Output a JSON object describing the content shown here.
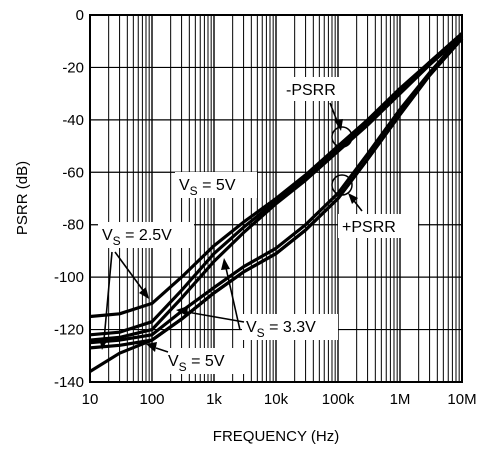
{
  "chart_data": {
    "type": "line",
    "xlabel": "FREQUENCY (Hz)",
    "ylabel": "PSRR (dB)",
    "x_scale": "log",
    "xlim": [
      10,
      10000000
    ],
    "ylim": [
      -140,
      0
    ],
    "x_ticks": [
      {
        "value": 10,
        "label": "10"
      },
      {
        "value": 100,
        "label": "100"
      },
      {
        "value": 1000,
        "label": "1k"
      },
      {
        "value": 10000,
        "label": "10k"
      },
      {
        "value": 100000,
        "label": "100k"
      },
      {
        "value": 1000000,
        "label": "1M"
      },
      {
        "value": 10000000,
        "label": "10M"
      }
    ],
    "y_ticks": [
      0,
      -20,
      -40,
      -60,
      -80,
      -100,
      -120,
      -140
    ],
    "grid": true,
    "series": [
      {
        "x": [
          10,
          30,
          100,
          300,
          1000,
          3000,
          10000,
          30000,
          100000,
          300000,
          1000000,
          3000000,
          10000000
        ],
        "y": [
          -115,
          -114,
          -110,
          -100,
          -88,
          -79,
          -70,
          -61,
          -50,
          -40,
          -28,
          -18,
          -7
        ]
      },
      {
        "x": [
          10,
          30,
          100,
          300,
          1000,
          3000,
          10000,
          30000,
          100000,
          300000,
          1000000,
          3000000,
          10000000
        ],
        "y": [
          -122,
          -121,
          -117,
          -105,
          -91,
          -81,
          -71,
          -62,
          -51,
          -41,
          -29,
          -18,
          -7
        ]
      },
      {
        "x": [
          10,
          30,
          100,
          300,
          1000,
          3000,
          10000,
          30000,
          100000,
          300000,
          1000000,
          3000000,
          10000000
        ],
        "y": [
          -124,
          -123,
          -120,
          -108,
          -94,
          -83,
          -72,
          -63,
          -52,
          -42,
          -30,
          -19,
          -8
        ]
      },
      {
        "x": [
          10,
          30,
          100,
          300,
          1000,
          3000,
          10000,
          30000,
          100000,
          300000,
          1000000,
          3000000,
          10000000
        ],
        "y": [
          -125,
          -124,
          -122,
          -113,
          -104,
          -96,
          -89,
          -80,
          -68,
          -53,
          -36,
          -22,
          -8
        ]
      },
      {
        "x": [
          10,
          30,
          100,
          300,
          1000,
          3000,
          10000,
          30000,
          100000,
          300000,
          1000000,
          3000000,
          10000000
        ],
        "y": [
          -127,
          -126,
          -124,
          -116,
          -106,
          -98,
          -91,
          -82,
          -70,
          -55,
          -38,
          -23,
          -9
        ]
      },
      {
        "x": [
          10,
          30,
          100,
          300,
          1000,
          3000,
          10000,
          30000,
          100000,
          300000,
          1000000,
          3000000,
          10000000
        ],
        "y": [
          -136,
          -129,
          -124,
          -116,
          -106,
          -98,
          -91,
          -82,
          -70,
          -55,
          -38,
          -23,
          -9
        ]
      }
    ],
    "annotations": [
      {
        "text": "-PSRR",
        "x": 100000,
        "y": -45
      },
      {
        "text": "+PSRR",
        "x": 180000,
        "y": -66
      },
      {
        "text": "VS = 5V",
        "x": 1000,
        "y": -63
      },
      {
        "text": "VS = 2.5V",
        "x": 15,
        "y": -80
      },
      {
        "text": "VS = 3.3V",
        "x": 3000,
        "y": -117
      },
      {
        "text": "VS = 5V",
        "x": 100,
        "y": -130
      }
    ]
  },
  "labels": {
    "annot_psrr_neg": "-PSRR",
    "annot_psrr_pos": "+PSRR",
    "vs_main": "V",
    "vs_sub": "S",
    "vs_5v_top": " = 5V",
    "vs_25v": " = 2.5V",
    "vs_33v": " = 3.3V",
    "vs_5v_bottom": " = 5V"
  }
}
